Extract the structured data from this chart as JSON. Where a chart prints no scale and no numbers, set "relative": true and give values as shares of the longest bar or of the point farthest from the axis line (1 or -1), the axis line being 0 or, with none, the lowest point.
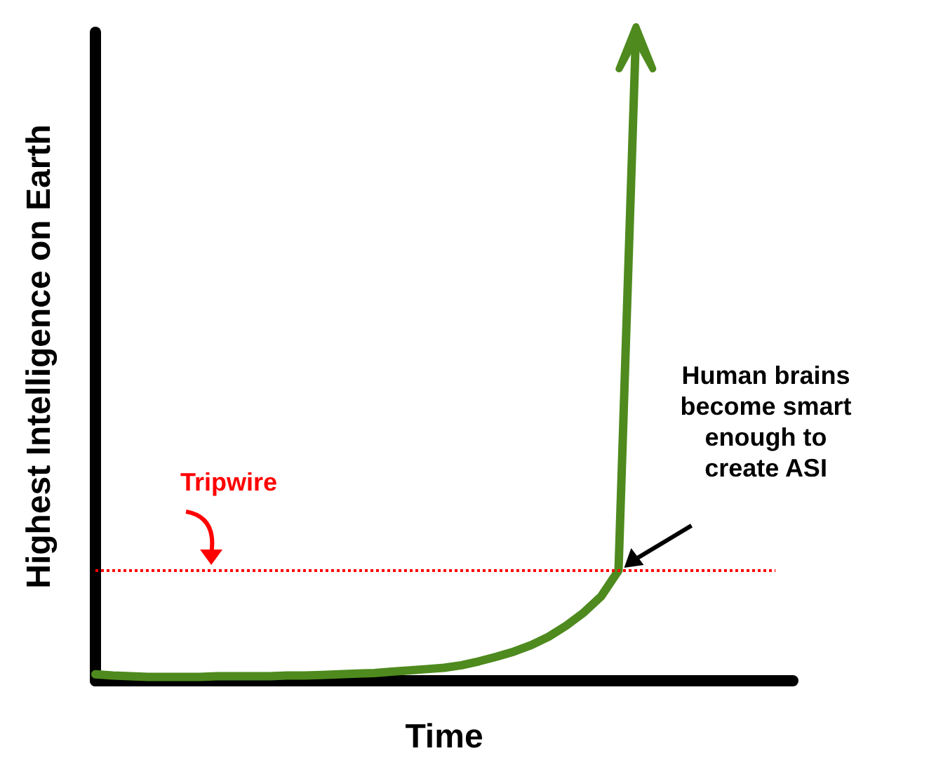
{
  "chart_data": {
    "type": "line",
    "relative": true,
    "xlabel": "Time",
    "ylabel": "Highest Intelligence on Earth",
    "categories": [
      null,
      null,
      null,
      null,
      null,
      null,
      null,
      null,
      null,
      null,
      null,
      null,
      null,
      null,
      null,
      null,
      null,
      null,
      null,
      null,
      null,
      null,
      null,
      null,
      null,
      null,
      null,
      null,
      null,
      null,
      null,
      null,
      null,
      null,
      null,
      null,
      null,
      null,
      null,
      null,
      null
    ],
    "series": [
      {
        "color": "#4e8a1e",
        "values": [
          0.01,
          0.008,
          0.007,
          0.006,
          0.006,
          0.006,
          0.006,
          0.007,
          0.007,
          0.007,
          0.007,
          0.008,
          0.008,
          0.009,
          0.01,
          0.011,
          0.012,
          0.014,
          0.016,
          0.018,
          0.02,
          0.024,
          0.03,
          0.037,
          0.045,
          0.055,
          0.068,
          0.085,
          0.105,
          0.13,
          0.17,
          1.0,
          null,
          null,
          null,
          null,
          null,
          null,
          null,
          null,
          null
        ]
      },
      {
        "name": "Tripwire",
        "color": "#ff0000",
        "line_style": "dotted",
        "values": [
          0.17,
          0.17,
          0.17,
          0.17,
          0.17,
          0.17,
          0.17,
          0.17,
          0.17,
          0.17,
          0.17,
          0.17,
          0.17,
          0.17,
          0.17,
          0.17,
          0.17,
          0.17,
          0.17,
          0.17,
          0.17,
          0.17,
          0.17,
          0.17,
          0.17,
          0.17,
          0.17,
          0.17,
          0.17,
          0.17,
          0.17,
          0.17,
          0.17,
          0.17,
          0.17,
          0.17,
          0.17,
          0.17,
          0.17,
          0.17,
          null
        ]
      }
    ],
    "annotations": [
      "Human brains\nbecome smart\nenough to\ncreate ASI"
    ],
    "marker": "none",
    "grid": false,
    "legend": false
  }
}
